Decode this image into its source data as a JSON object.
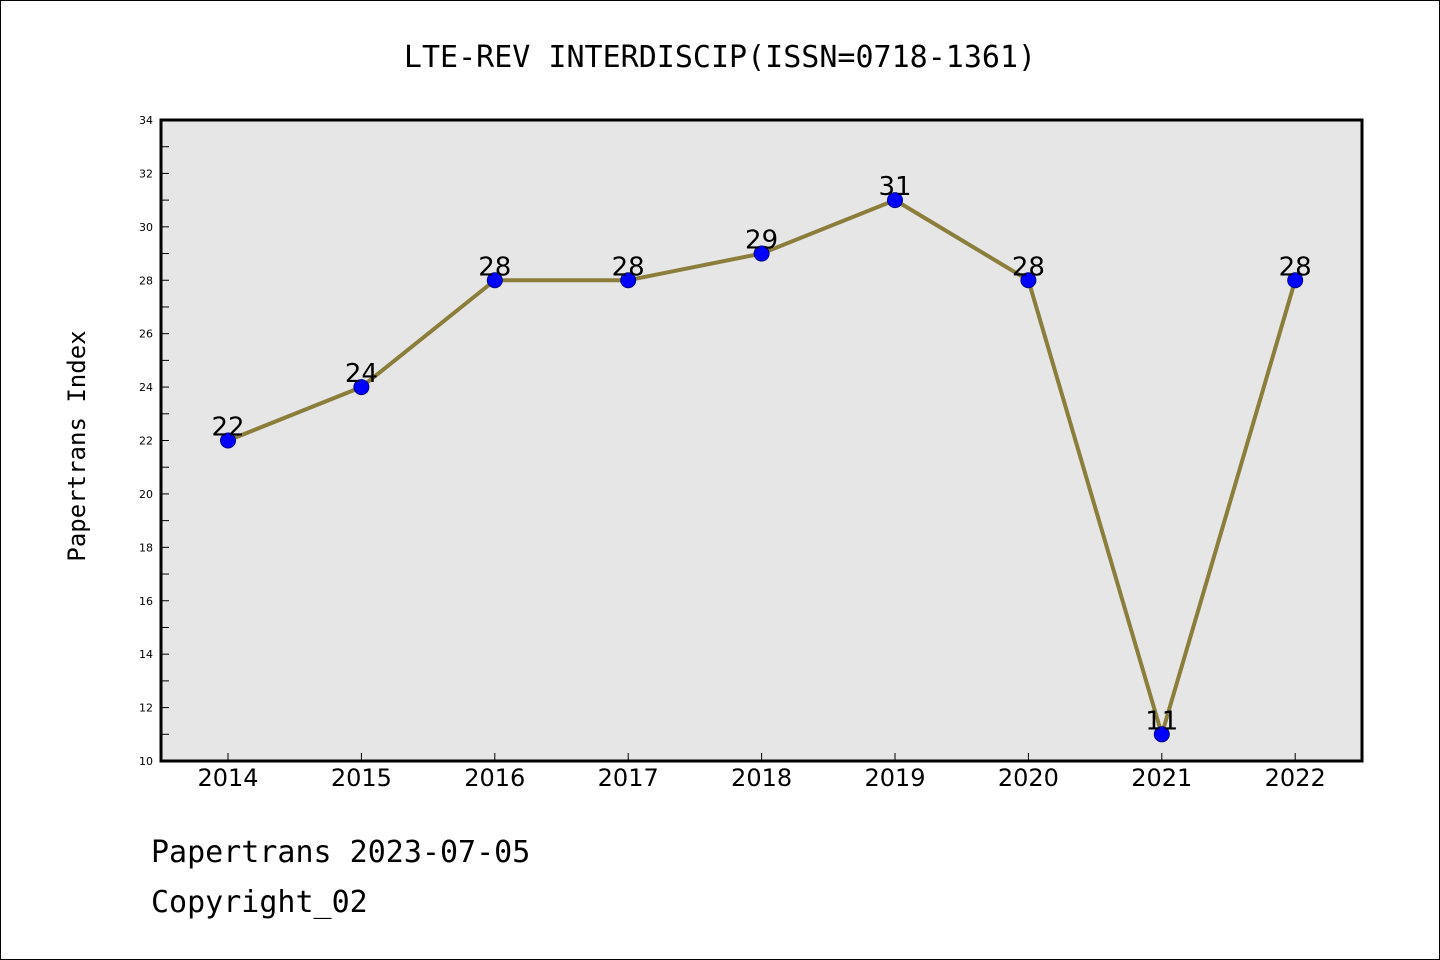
{
  "chart_data": {
    "type": "line",
    "title": "LTE-REV INTERDISCIP(ISSN=0718-1361)",
    "xlabel": "",
    "ylabel": "Papertrans Index",
    "categories": [
      "2014",
      "2015",
      "2016",
      "2017",
      "2018",
      "2019",
      "2020",
      "2021",
      "2022"
    ],
    "values": [
      22,
      24,
      28,
      28,
      29,
      31,
      28,
      11,
      28
    ],
    "data_labels": [
      "22",
      "24",
      "28",
      "28",
      "29",
      "31",
      "28",
      "11",
      "28"
    ],
    "ylim": [
      10,
      34
    ],
    "yticks": [
      "10",
      "12",
      "14",
      "16",
      "18",
      "20",
      "22",
      "24",
      "26",
      "28",
      "30",
      "32",
      "34"
    ],
    "grid": false,
    "colors": {
      "line": "#8B7D3A",
      "marker": "#0000FF",
      "plot_background": "#E6E6E6"
    }
  },
  "footer": {
    "date_line": "Papertrans 2023-07-05",
    "copyright": "Copyright_02"
  }
}
